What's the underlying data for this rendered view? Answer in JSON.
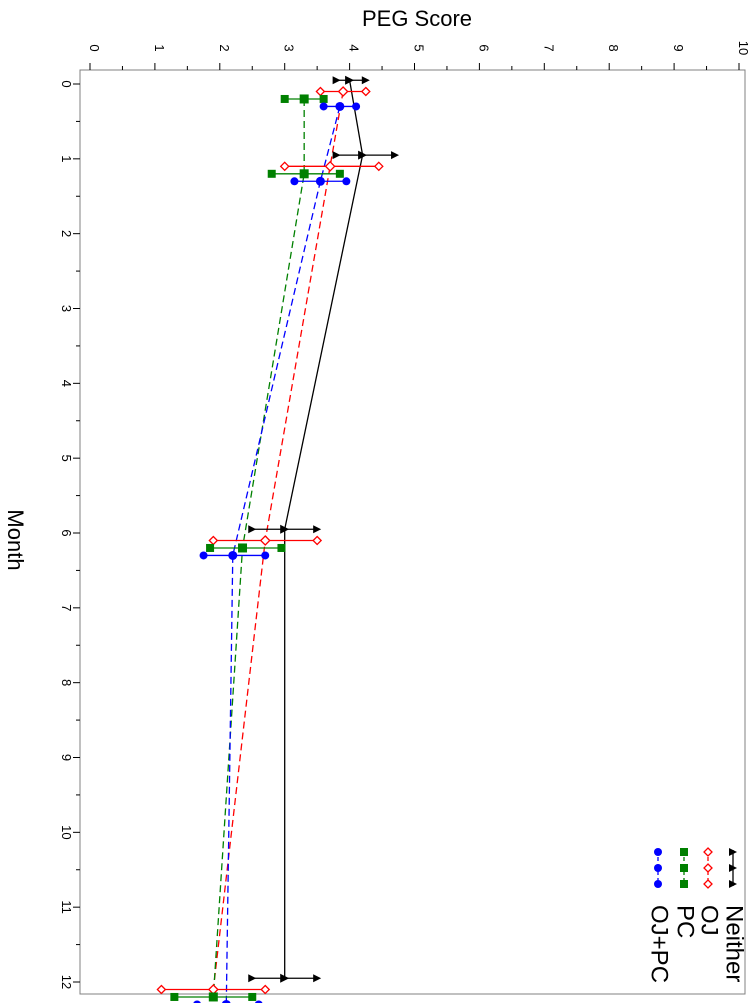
{
  "chart_data": {
    "type": "line",
    "orientation": "rotated-90-clockwise",
    "title": "",
    "xlabel": "Month",
    "ylabel": "PEG Score",
    "xlim": [
      0,
      12
    ],
    "ylim": [
      0,
      10
    ],
    "x_ticks": [
      "0",
      "1",
      "2",
      "3",
      "4",
      "5",
      "6",
      "7",
      "8",
      "9",
      "10",
      "11",
      "12"
    ],
    "y_ticks": [
      "0",
      "1",
      "2",
      "3",
      "4",
      "5",
      "6",
      "7",
      "8",
      "9",
      "10"
    ],
    "grid": false,
    "legend_position": "bottom-right",
    "series": [
      {
        "name": "Neither",
        "color": "#000000",
        "marker": "triangle",
        "line_style": "solid",
        "offset": -0.05,
        "x": [
          0,
          1,
          6,
          12
        ],
        "y": [
          4.0,
          4.2,
          3.0,
          3.0
        ],
        "lower": [
          3.8,
          3.8,
          2.5,
          2.5
        ],
        "upper": [
          4.25,
          4.7,
          3.5,
          3.5
        ]
      },
      {
        "name": "OJ",
        "color": "#ff0000",
        "marker": "diamond-open",
        "line_style": "dashed",
        "offset": 0.1,
        "x": [
          0,
          1,
          6,
          12
        ],
        "y": [
          3.9,
          3.7,
          2.7,
          1.9
        ],
        "lower": [
          3.55,
          3.0,
          1.9,
          1.1
        ],
        "upper": [
          4.25,
          4.45,
          3.5,
          2.7
        ]
      },
      {
        "name": "PC",
        "color": "#008000",
        "marker": "square",
        "line_style": "dashed",
        "offset": 0.2,
        "x": [
          0,
          1,
          6,
          12
        ],
        "y": [
          3.3,
          3.3,
          2.35,
          1.9
        ],
        "lower": [
          3.0,
          2.8,
          1.85,
          1.3
        ],
        "upper": [
          3.6,
          3.85,
          2.95,
          2.5
        ]
      },
      {
        "name": "OJ+PC",
        "color": "#0000ff",
        "marker": "circle",
        "line_style": "dashed",
        "offset": 0.3,
        "x": [
          0,
          1,
          6,
          12
        ],
        "y": [
          3.85,
          3.55,
          2.2,
          2.1
        ],
        "lower": [
          3.6,
          3.15,
          1.75,
          1.65
        ],
        "upper": [
          4.1,
          3.95,
          2.7,
          2.6
        ]
      }
    ]
  }
}
